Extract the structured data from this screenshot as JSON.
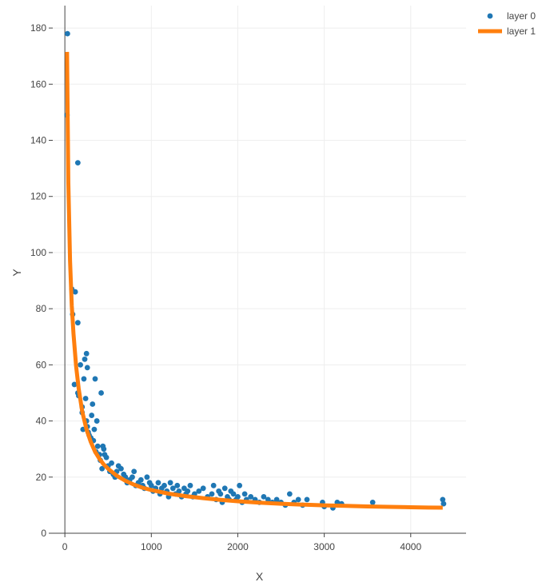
{
  "chart_data": {
    "type": "scatter",
    "xlabel": "X",
    "ylabel": "Y",
    "xlim": [
      -140,
      4640
    ],
    "ylim": [
      0,
      188
    ],
    "xticks": [
      0,
      1000,
      2000,
      3000,
      4000
    ],
    "yticks": [
      0,
      20,
      40,
      60,
      80,
      100,
      120,
      140,
      160,
      180
    ],
    "grid": true,
    "legend": "top-right",
    "series": [
      {
        "name": "layer 0",
        "kind": "scatter",
        "color": "#1f77b4",
        "points": [
          [
            30,
            178
          ],
          [
            25,
            149
          ],
          [
            80,
            87
          ],
          [
            90,
            78
          ],
          [
            120,
            86
          ],
          [
            150,
            132
          ],
          [
            150,
            75
          ],
          [
            110,
            53
          ],
          [
            150,
            50
          ],
          [
            160,
            49
          ],
          [
            180,
            60
          ],
          [
            200,
            45
          ],
          [
            200,
            43
          ],
          [
            210,
            37
          ],
          [
            220,
            55
          ],
          [
            230,
            62
          ],
          [
            250,
            64
          ],
          [
            260,
            59
          ],
          [
            240,
            48
          ],
          [
            250,
            40
          ],
          [
            260,
            38
          ],
          [
            270,
            36
          ],
          [
            280,
            35
          ],
          [
            300,
            34
          ],
          [
            310,
            42
          ],
          [
            320,
            46
          ],
          [
            330,
            33
          ],
          [
            340,
            37
          ],
          [
            350,
            55
          ],
          [
            360,
            29
          ],
          [
            370,
            40
          ],
          [
            380,
            31
          ],
          [
            400,
            28
          ],
          [
            410,
            26
          ],
          [
            420,
            50
          ],
          [
            430,
            23
          ],
          [
            440,
            31
          ],
          [
            450,
            30
          ],
          [
            460,
            28
          ],
          [
            480,
            27
          ],
          [
            500,
            24
          ],
          [
            520,
            22
          ],
          [
            540,
            25
          ],
          [
            560,
            21
          ],
          [
            580,
            20
          ],
          [
            600,
            22
          ],
          [
            620,
            24
          ],
          [
            650,
            23
          ],
          [
            680,
            21
          ],
          [
            700,
            20
          ],
          [
            720,
            18
          ],
          [
            750,
            19
          ],
          [
            780,
            20
          ],
          [
            800,
            22
          ],
          [
            820,
            17
          ],
          [
            850,
            18
          ],
          [
            880,
            19
          ],
          [
            900,
            17
          ],
          [
            920,
            16
          ],
          [
            950,
            20
          ],
          [
            980,
            18
          ],
          [
            1000,
            17
          ],
          [
            1020,
            15
          ],
          [
            1050,
            16
          ],
          [
            1080,
            18
          ],
          [
            1100,
            14
          ],
          [
            1120,
            16
          ],
          [
            1150,
            17
          ],
          [
            1180,
            15
          ],
          [
            1200,
            13
          ],
          [
            1220,
            18
          ],
          [
            1250,
            16
          ],
          [
            1280,
            14
          ],
          [
            1300,
            17
          ],
          [
            1320,
            15
          ],
          [
            1350,
            13
          ],
          [
            1380,
            16
          ],
          [
            1400,
            14
          ],
          [
            1420,
            15
          ],
          [
            1450,
            17
          ],
          [
            1480,
            13
          ],
          [
            1500,
            14
          ],
          [
            1550,
            15
          ],
          [
            1600,
            16
          ],
          [
            1650,
            13
          ],
          [
            1700,
            14
          ],
          [
            1720,
            17
          ],
          [
            1750,
            12
          ],
          [
            1780,
            15
          ],
          [
            1800,
            14
          ],
          [
            1820,
            11
          ],
          [
            1850,
            16
          ],
          [
            1880,
            13
          ],
          [
            1900,
            12
          ],
          [
            1920,
            15
          ],
          [
            1950,
            14
          ],
          [
            1980,
            12
          ],
          [
            2000,
            13
          ],
          [
            2020,
            17
          ],
          [
            2050,
            11
          ],
          [
            2080,
            14
          ],
          [
            2100,
            12
          ],
          [
            2150,
            13
          ],
          [
            2200,
            12
          ],
          [
            2250,
            11
          ],
          [
            2300,
            13
          ],
          [
            2350,
            12
          ],
          [
            2400,
            11
          ],
          [
            2450,
            12
          ],
          [
            2500,
            11
          ],
          [
            2550,
            10
          ],
          [
            2600,
            14
          ],
          [
            2650,
            11
          ],
          [
            2700,
            12
          ],
          [
            2750,
            10
          ],
          [
            2800,
            12
          ],
          [
            2980,
            11
          ],
          [
            3000,
            9.5
          ],
          [
            3100,
            9
          ],
          [
            3150,
            11
          ],
          [
            3200,
            10.5
          ],
          [
            3560,
            11
          ],
          [
            4370,
            12
          ],
          [
            4380,
            10.5
          ]
        ]
      },
      {
        "name": "layer 1",
        "kind": "line",
        "color": "#ff7f0e",
        "x": [
          25,
          40,
          60,
          80,
          100,
          130,
          160,
          200,
          250,
          300,
          350,
          400,
          450,
          500,
          600,
          700,
          800,
          900,
          1000,
          1200,
          1400,
          1600,
          1800,
          2000,
          2250,
          2500,
          2750,
          3000,
          3250,
          3500,
          3750,
          4000,
          4200,
          4370
        ],
        "y": [
          171.5,
          125,
          97,
          81,
          71,
          59.5,
          51.5,
          43.5,
          37,
          32.5,
          29,
          26.5,
          24.5,
          23,
          20.5,
          18.7,
          17.3,
          16.2,
          15.4,
          14.1,
          13.2,
          12.5,
          11.9,
          11.4,
          10.9,
          10.5,
          10.2,
          9.95,
          9.75,
          9.55,
          9.4,
          9.25,
          9.15,
          9.1
        ]
      }
    ]
  }
}
